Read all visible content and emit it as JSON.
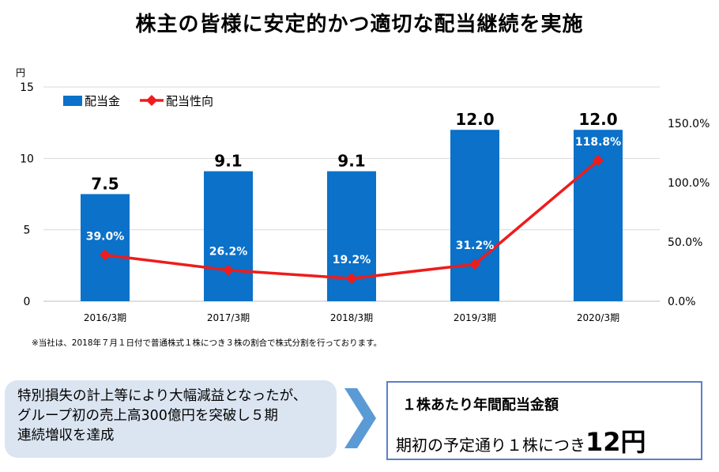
{
  "page": {
    "title": "株主の皆様に安定的かつ適切な配当継続を実施",
    "note": "※当社は、2018年７月１日付で普通株式１株につき３株の割合で株式分割を行っております。"
  },
  "callout": {
    "lines": [
      "特別損失の計上等により大幅減益となったが、",
      "グループ初の売上高300億円を突破し５期",
      "連続増収を達成"
    ]
  },
  "summary": {
    "heading": "１株あたり年間配当金額",
    "body_prefix": "期初の予定通り１株につき",
    "body_amount": "12円"
  },
  "chart_data": {
    "type": "bar+line",
    "categories": [
      "2016/3期",
      "2017/3期",
      "2018/3期",
      "2019/3期",
      "2020/3期"
    ],
    "series": [
      {
        "name": "配当金",
        "type": "bar",
        "axis": "left",
        "values": [
          7.5,
          9.1,
          9.1,
          12.0,
          12.0
        ],
        "labels": [
          "7.5",
          "9.1",
          "9.1",
          "12.0",
          "12.0"
        ],
        "color": "#0b71c9"
      },
      {
        "name": "配当性向",
        "type": "line",
        "axis": "right",
        "values": [
          39.0,
          26.2,
          19.2,
          31.2,
          118.8
        ],
        "labels": [
          "39.0%",
          "26.2%",
          "19.2%",
          "31.2%",
          "118.8%"
        ],
        "color": "#ee1c1c"
      }
    ],
    "left_axis": {
      "unit": "円",
      "ylim": [
        0,
        15
      ],
      "ticks": [
        "0",
        "5",
        "10",
        "15"
      ],
      "tick_values": [
        0,
        5,
        10,
        15
      ]
    },
    "right_axis": {
      "ylim": [
        0,
        150
      ],
      "ticks": [
        "0.0%",
        "50.0%",
        "100.0%",
        "150.0%"
      ],
      "tick_values": [
        0,
        50,
        100,
        150
      ]
    },
    "legend": {
      "position": "top-left",
      "entries": [
        "配当金",
        "配当性向"
      ]
    },
    "grid": true
  }
}
